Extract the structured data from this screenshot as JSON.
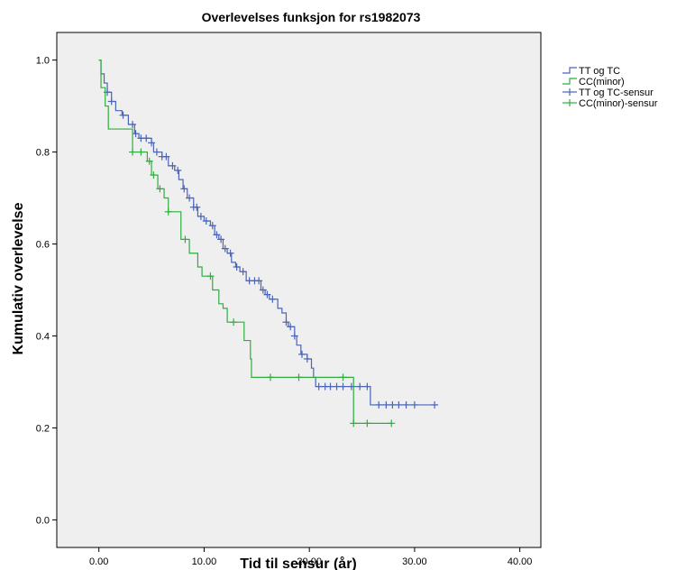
{
  "chart_data": {
    "type": "line",
    "title": "Overlevelses funksjon for rs1982073",
    "xlabel": "Tid til sensur (år)",
    "ylabel": "Kumulativ overlevelse",
    "xlim": [
      -4,
      42
    ],
    "ylim": [
      -0.06,
      1.06
    ],
    "xticks": [
      0,
      10,
      20,
      30,
      40
    ],
    "xtick_labels": [
      "0.00",
      "10.00",
      "20.00",
      "30.00",
      "40.00"
    ],
    "yticks": [
      0.0,
      0.2,
      0.4,
      0.6,
      0.8,
      1.0
    ],
    "ytick_labels": [
      "0.0",
      "0.2",
      "0.4",
      "0.6",
      "0.8",
      "1.0"
    ],
    "grid": false,
    "legend_position": "right",
    "colors": {
      "blue": "#4a64b8",
      "green": "#2fad3f",
      "plot_bg": "#efefef"
    },
    "legend": [
      "TT og TC",
      "CC(minor)",
      "TT og TC-sensur",
      "CC(minor)-sensur"
    ],
    "series": [
      {
        "name": "TT og TC",
        "color": "#4a64b8",
        "steps": [
          [
            0,
            1.0
          ],
          [
            0.2,
            0.97
          ],
          [
            0.5,
            0.95
          ],
          [
            0.8,
            0.93
          ],
          [
            1.2,
            0.91
          ],
          [
            1.6,
            0.89
          ],
          [
            2.2,
            0.88
          ],
          [
            2.8,
            0.86
          ],
          [
            3.4,
            0.84
          ],
          [
            3.8,
            0.83
          ],
          [
            5.0,
            0.82
          ],
          [
            5.2,
            0.8
          ],
          [
            6.0,
            0.79
          ],
          [
            6.6,
            0.77
          ],
          [
            7.2,
            0.76
          ],
          [
            7.6,
            0.74
          ],
          [
            8.0,
            0.72
          ],
          [
            8.4,
            0.7
          ],
          [
            9.0,
            0.68
          ],
          [
            9.4,
            0.66
          ],
          [
            10.0,
            0.65
          ],
          [
            10.6,
            0.64
          ],
          [
            11.0,
            0.62
          ],
          [
            11.4,
            0.61
          ],
          [
            11.8,
            0.59
          ],
          [
            12.2,
            0.58
          ],
          [
            12.6,
            0.56
          ],
          [
            13.0,
            0.55
          ],
          [
            13.4,
            0.54
          ],
          [
            14.0,
            0.52
          ],
          [
            15.4,
            0.5
          ],
          [
            15.8,
            0.49
          ],
          [
            16.2,
            0.48
          ],
          [
            17.0,
            0.46
          ],
          [
            17.4,
            0.45
          ],
          [
            17.8,
            0.43
          ],
          [
            18.0,
            0.42
          ],
          [
            18.6,
            0.4
          ],
          [
            18.8,
            0.38
          ],
          [
            19.2,
            0.36
          ],
          [
            19.8,
            0.35
          ],
          [
            20.2,
            0.33
          ],
          [
            20.4,
            0.31
          ],
          [
            20.6,
            0.29
          ],
          [
            25.8,
            0.25
          ],
          [
            32.2,
            0.25
          ]
        ],
        "censor_x": [
          0.8,
          1.2,
          2.3,
          3.2,
          3.5,
          4.0,
          4.5,
          5.0,
          5.5,
          6.0,
          6.4,
          7.0,
          7.5,
          8.1,
          8.6,
          9.0,
          9.3,
          9.7,
          10.2,
          10.8,
          11.2,
          11.6,
          12.0,
          12.5,
          13.1,
          13.7,
          14.3,
          14.8,
          15.2,
          15.6,
          16.0,
          16.5,
          17.8,
          18.2,
          18.6,
          19.3,
          19.8,
          20.9,
          21.5,
          22.0,
          22.6,
          23.2,
          24.0,
          24.8,
          25.5,
          26.6,
          27.3,
          27.9,
          28.5,
          29.2,
          30.0,
          31.9
        ],
        "censor_label": "TT og TC-sensur"
      },
      {
        "name": "CC(minor)",
        "color": "#2fad3f",
        "steps": [
          [
            0,
            1.0
          ],
          [
            0.2,
            0.94
          ],
          [
            0.6,
            0.9
          ],
          [
            0.9,
            0.85
          ],
          [
            3.2,
            0.8
          ],
          [
            4.6,
            0.78
          ],
          [
            5.0,
            0.75
          ],
          [
            5.6,
            0.72
          ],
          [
            6.2,
            0.7
          ],
          [
            6.6,
            0.67
          ],
          [
            7.8,
            0.61
          ],
          [
            8.6,
            0.58
          ],
          [
            9.4,
            0.55
          ],
          [
            9.8,
            0.53
          ],
          [
            10.8,
            0.5
          ],
          [
            11.4,
            0.47
          ],
          [
            11.8,
            0.46
          ],
          [
            12.2,
            0.43
          ],
          [
            13.8,
            0.39
          ],
          [
            14.4,
            0.35
          ],
          [
            14.5,
            0.31
          ],
          [
            24.2,
            0.21
          ],
          [
            27.8,
            0.21
          ]
        ],
        "censor_x": [
          3.2,
          4.0,
          4.8,
          5.2,
          5.8,
          6.6,
          8.2,
          10.6,
          12.8,
          16.3,
          19.0,
          23.2,
          24.2,
          25.5,
          27.8
        ],
        "censor_label": "CC(minor)-sensur"
      }
    ]
  }
}
